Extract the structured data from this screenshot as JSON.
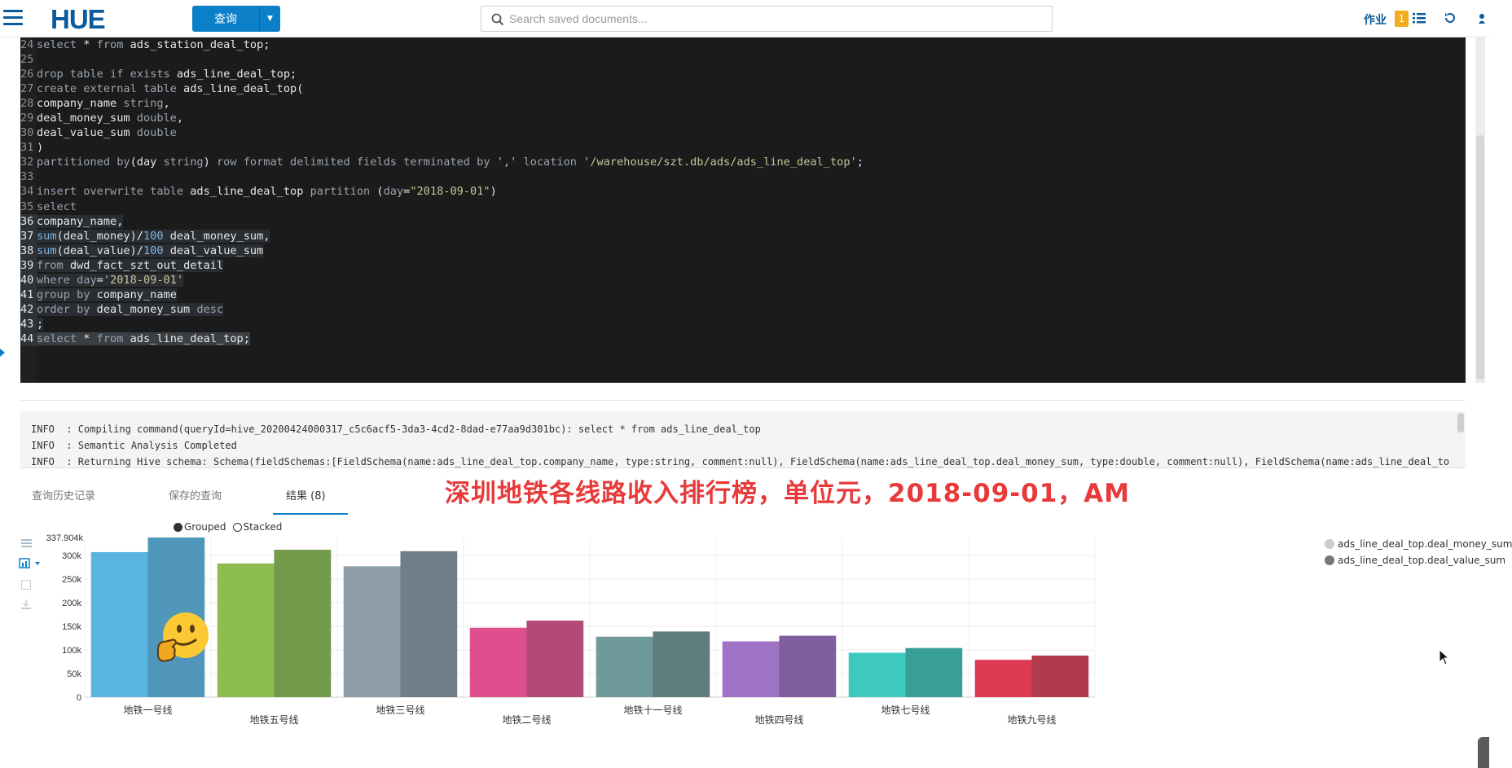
{
  "topbar": {
    "logo_text": "HUE",
    "query_button": "查询",
    "search_placeholder": "Search saved documents...",
    "jobs_label": "作业",
    "jobs_count": "1"
  },
  "editor": {
    "lines": [
      {
        "n": "24",
        "code": "select * from ads_station_deal_top;"
      },
      {
        "n": "25",
        "code": ""
      },
      {
        "n": "26",
        "code": "drop table if exists ads_line_deal_top;"
      },
      {
        "n": "27",
        "code": "create external table ads_line_deal_top("
      },
      {
        "n": "28",
        "code": "company_name string,"
      },
      {
        "n": "29",
        "code": "deal_money_sum double,"
      },
      {
        "n": "30",
        "code": "deal_value_sum double"
      },
      {
        "n": "31",
        "code": ")"
      },
      {
        "n": "32",
        "code": "partitioned by(day string) row format delimited fields terminated by ',' location '/warehouse/szt.db/ads/ads_line_deal_top';"
      },
      {
        "n": "33",
        "code": ""
      },
      {
        "n": "34",
        "code": "insert overwrite table ads_line_deal_top partition (day=\"2018-09-01\")"
      },
      {
        "n": "35",
        "code": "select"
      },
      {
        "n": "36",
        "code": "company_name,"
      },
      {
        "n": "37",
        "code": "sum(deal_money)/100 deal_money_sum,"
      },
      {
        "n": "38",
        "code": "sum(deal_value)/100 deal_value_sum"
      },
      {
        "n": "39",
        "code": "from dwd_fact_szt_out_detail"
      },
      {
        "n": "40",
        "code": "where day='2018-09-01'"
      },
      {
        "n": "41",
        "code": "group by company_name"
      },
      {
        "n": "42",
        "code": "order by deal_money_sum desc"
      },
      {
        "n": "43",
        "code": ";"
      },
      {
        "n": "44",
        "code": "select * from ads_line_deal_top;"
      }
    ]
  },
  "log": {
    "lines": [
      "INFO  : Compiling command(queryId=hive_20200424000317_c5c6acf5-3da3-4cd2-8dad-e77aa9d301bc): select * from ads_line_deal_top",
      "INFO  : Semantic Analysis Completed",
      "INFO  : Returning Hive schema: Schema(fieldSchemas:[FieldSchema(name:ads_line_deal_top.company_name, type:string, comment:null), FieldSchema(name:ads_line_deal_top.deal_money_sum, type:double, comment:null), FieldSchema(name:ads_line_deal_to"
    ]
  },
  "caption": "深圳地铁各线路收入排行榜，单位元，2018-09-01，AM",
  "tabs": {
    "history": "查询历史记录",
    "saved": "保存的查询",
    "results": "结果 (8)"
  },
  "chart_toggle": {
    "grouped": "Grouped",
    "stacked": "Stacked"
  },
  "legend": {
    "series1": "ads_line_deal_top.deal_money_sum",
    "series2": "ads_line_deal_top.deal_value_sum",
    "series1_color": "#cccccc",
    "series2_color": "#777777"
  },
  "chart_data": {
    "type": "bar",
    "categories": [
      "地铁一号线",
      "地铁五号线",
      "地铁三号线",
      "地铁二号线",
      "地铁十一号线",
      "地铁四号线",
      "地铁七号线",
      "地铁九号线"
    ],
    "series": [
      {
        "name": "ads_line_deal_top.deal_money_sum",
        "values": [
          307000,
          283000,
          277000,
          147000,
          128000,
          118000,
          94000,
          79000
        ]
      },
      {
        "name": "ads_line_deal_top.deal_value_sum",
        "values": [
          337904,
          312000,
          309000,
          162000,
          139000,
          130000,
          104000,
          88000
        ]
      }
    ],
    "colors_series1": [
      "#5ab4e0",
      "#8dbd4e",
      "#8d9ea8",
      "#df4f8e",
      "#6e9a9c",
      "#9e72c4",
      "#3ec9bf",
      "#de3a53"
    ],
    "colors_series2": [
      "#4f96ba",
      "#73994a",
      "#6f7f8a",
      "#b24a75",
      "#5f7c7e",
      "#7e5e9f",
      "#379f97",
      "#b23a4d"
    ],
    "ylim": [
      0,
      337904
    ],
    "y_ticks": [
      0,
      50000,
      100000,
      150000,
      200000,
      250000,
      300000
    ],
    "y_tick_labels": [
      "0",
      "50k",
      "100k",
      "150k",
      "200k",
      "250k",
      "300k"
    ],
    "y_max_label": "337.904k",
    "grid": true,
    "legend_position": "right"
  }
}
